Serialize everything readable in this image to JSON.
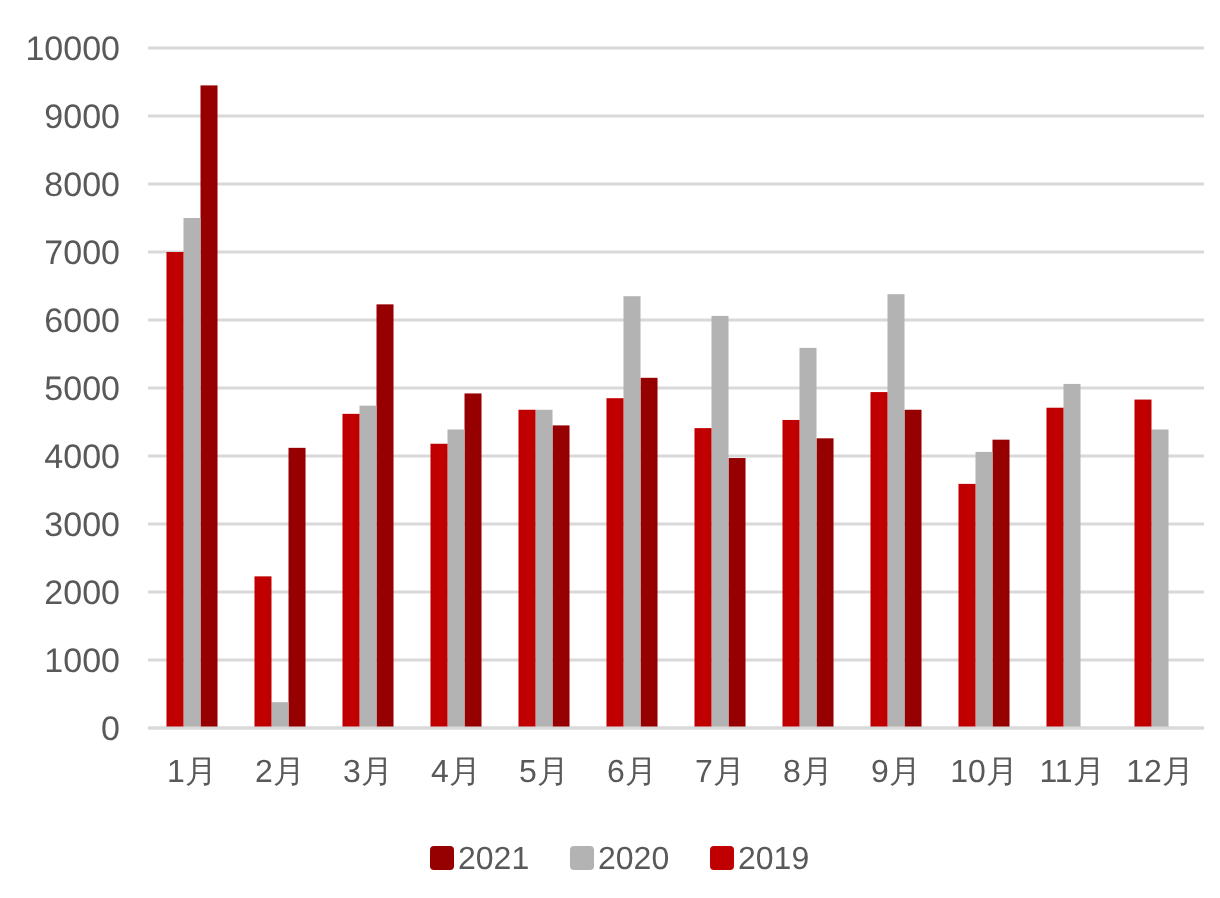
{
  "chart_data": {
    "type": "bar",
    "categories": [
      "1月",
      "2月",
      "3月",
      "4月",
      "5月",
      "6月",
      "7月",
      "8月",
      "9月",
      "10月",
      "11月",
      "12月"
    ],
    "series": [
      {
        "name": "2021",
        "color": "#960000",
        "values": [
          9450,
          4120,
          6230,
          4920,
          4450,
          5150,
          3970,
          4260,
          4680,
          4240,
          null,
          null
        ]
      },
      {
        "name": "2020",
        "color": "#b3b3b3",
        "values": [
          7500,
          380,
          4740,
          4390,
          4680,
          6350,
          6060,
          5590,
          6380,
          4060,
          5060,
          4390
        ]
      },
      {
        "name": "2019",
        "color": "#c00000",
        "values": [
          7000,
          2230,
          4620,
          4180,
          4680,
          4850,
          4410,
          4530,
          4940,
          3590,
          4710,
          4830
        ]
      }
    ],
    "ylim": [
      0,
      10000
    ],
    "yticks": [
      0,
      1000,
      2000,
      3000,
      4000,
      5000,
      6000,
      7000,
      8000,
      9000,
      10000
    ],
    "grid": "y",
    "legend": "bottom"
  }
}
